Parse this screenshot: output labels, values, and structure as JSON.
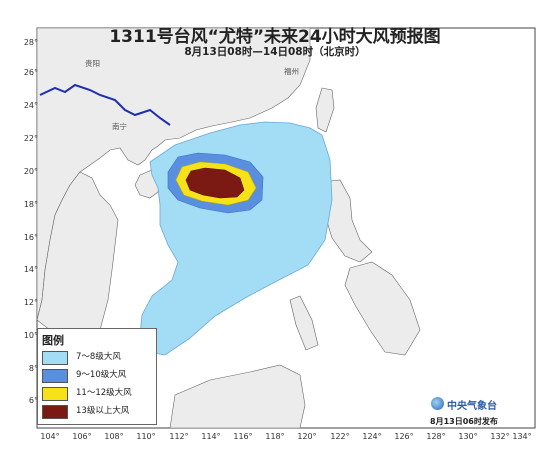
{
  "title": "1311号台风“尤特”未来24小时大风预报图",
  "subtitle": "8月13日08时—14日08时（北京时）",
  "latitude_labels": [
    "28°",
    "26°",
    "24°",
    "22°",
    "20°",
    "18°",
    "16°",
    "14°",
    "12°",
    "10°",
    "8°",
    "6°"
  ],
  "longitude_labels": [
    "104°",
    "106°",
    "108°",
    "110°",
    "112°",
    "114°",
    "116°",
    "118°",
    "120°",
    "122°",
    "124°",
    "126°",
    "128°",
    "130°",
    "132°",
    "134°"
  ],
  "place_labels": [
    "贵阳",
    "南宁",
    "福州"
  ],
  "legend": {
    "title": "图例",
    "items": [
      {
        "label": "7～8级大风",
        "color": "#a3dcf5"
      },
      {
        "label": "9～10级大风",
        "color": "#5a8fe0"
      },
      {
        "label": "11～12级大风",
        "color": "#f7e21a"
      },
      {
        "label": "13级以上大风",
        "color": "#7a1a12"
      }
    ]
  },
  "colors": {
    "land": "#ececec",
    "sea": "#ffffff",
    "border_blue": "#1d2fb0"
  },
  "logo_text": "中央气象台",
  "issue_text": "8月13日06时发布"
}
